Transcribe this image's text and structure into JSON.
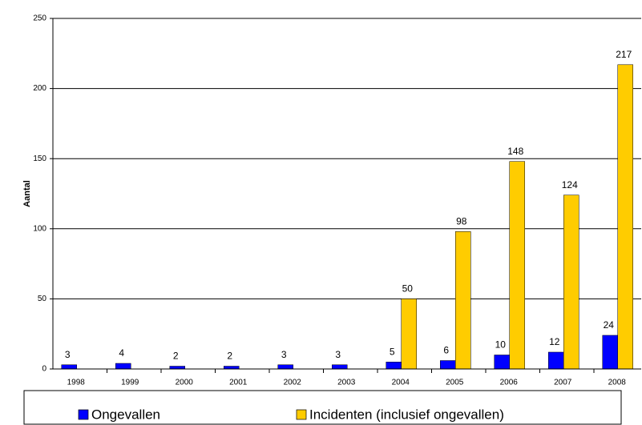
{
  "chart_data": {
    "type": "bar",
    "y_label": "Aantal",
    "categories": [
      "1998",
      "1999",
      "2000",
      "2001",
      "2002",
      "2003",
      "2004",
      "2005",
      "2006",
      "2007",
      "2008"
    ],
    "series": [
      {
        "name": "Ongevallen",
        "color": "#0000ff",
        "values": [
          3,
          4,
          2,
          2,
          3,
          3,
          5,
          6,
          10,
          12,
          24
        ]
      },
      {
        "name": "Incidenten (inclusief ongevallen)",
        "color": "#ffcc00",
        "values": [
          null,
          null,
          null,
          null,
          null,
          null,
          50,
          98,
          148,
          124,
          217
        ]
      }
    ],
    "ylim": [
      0,
      250
    ],
    "yticks": [
      0,
      50,
      100,
      150,
      200,
      250
    ],
    "grid": true,
    "legend": "bottom"
  }
}
